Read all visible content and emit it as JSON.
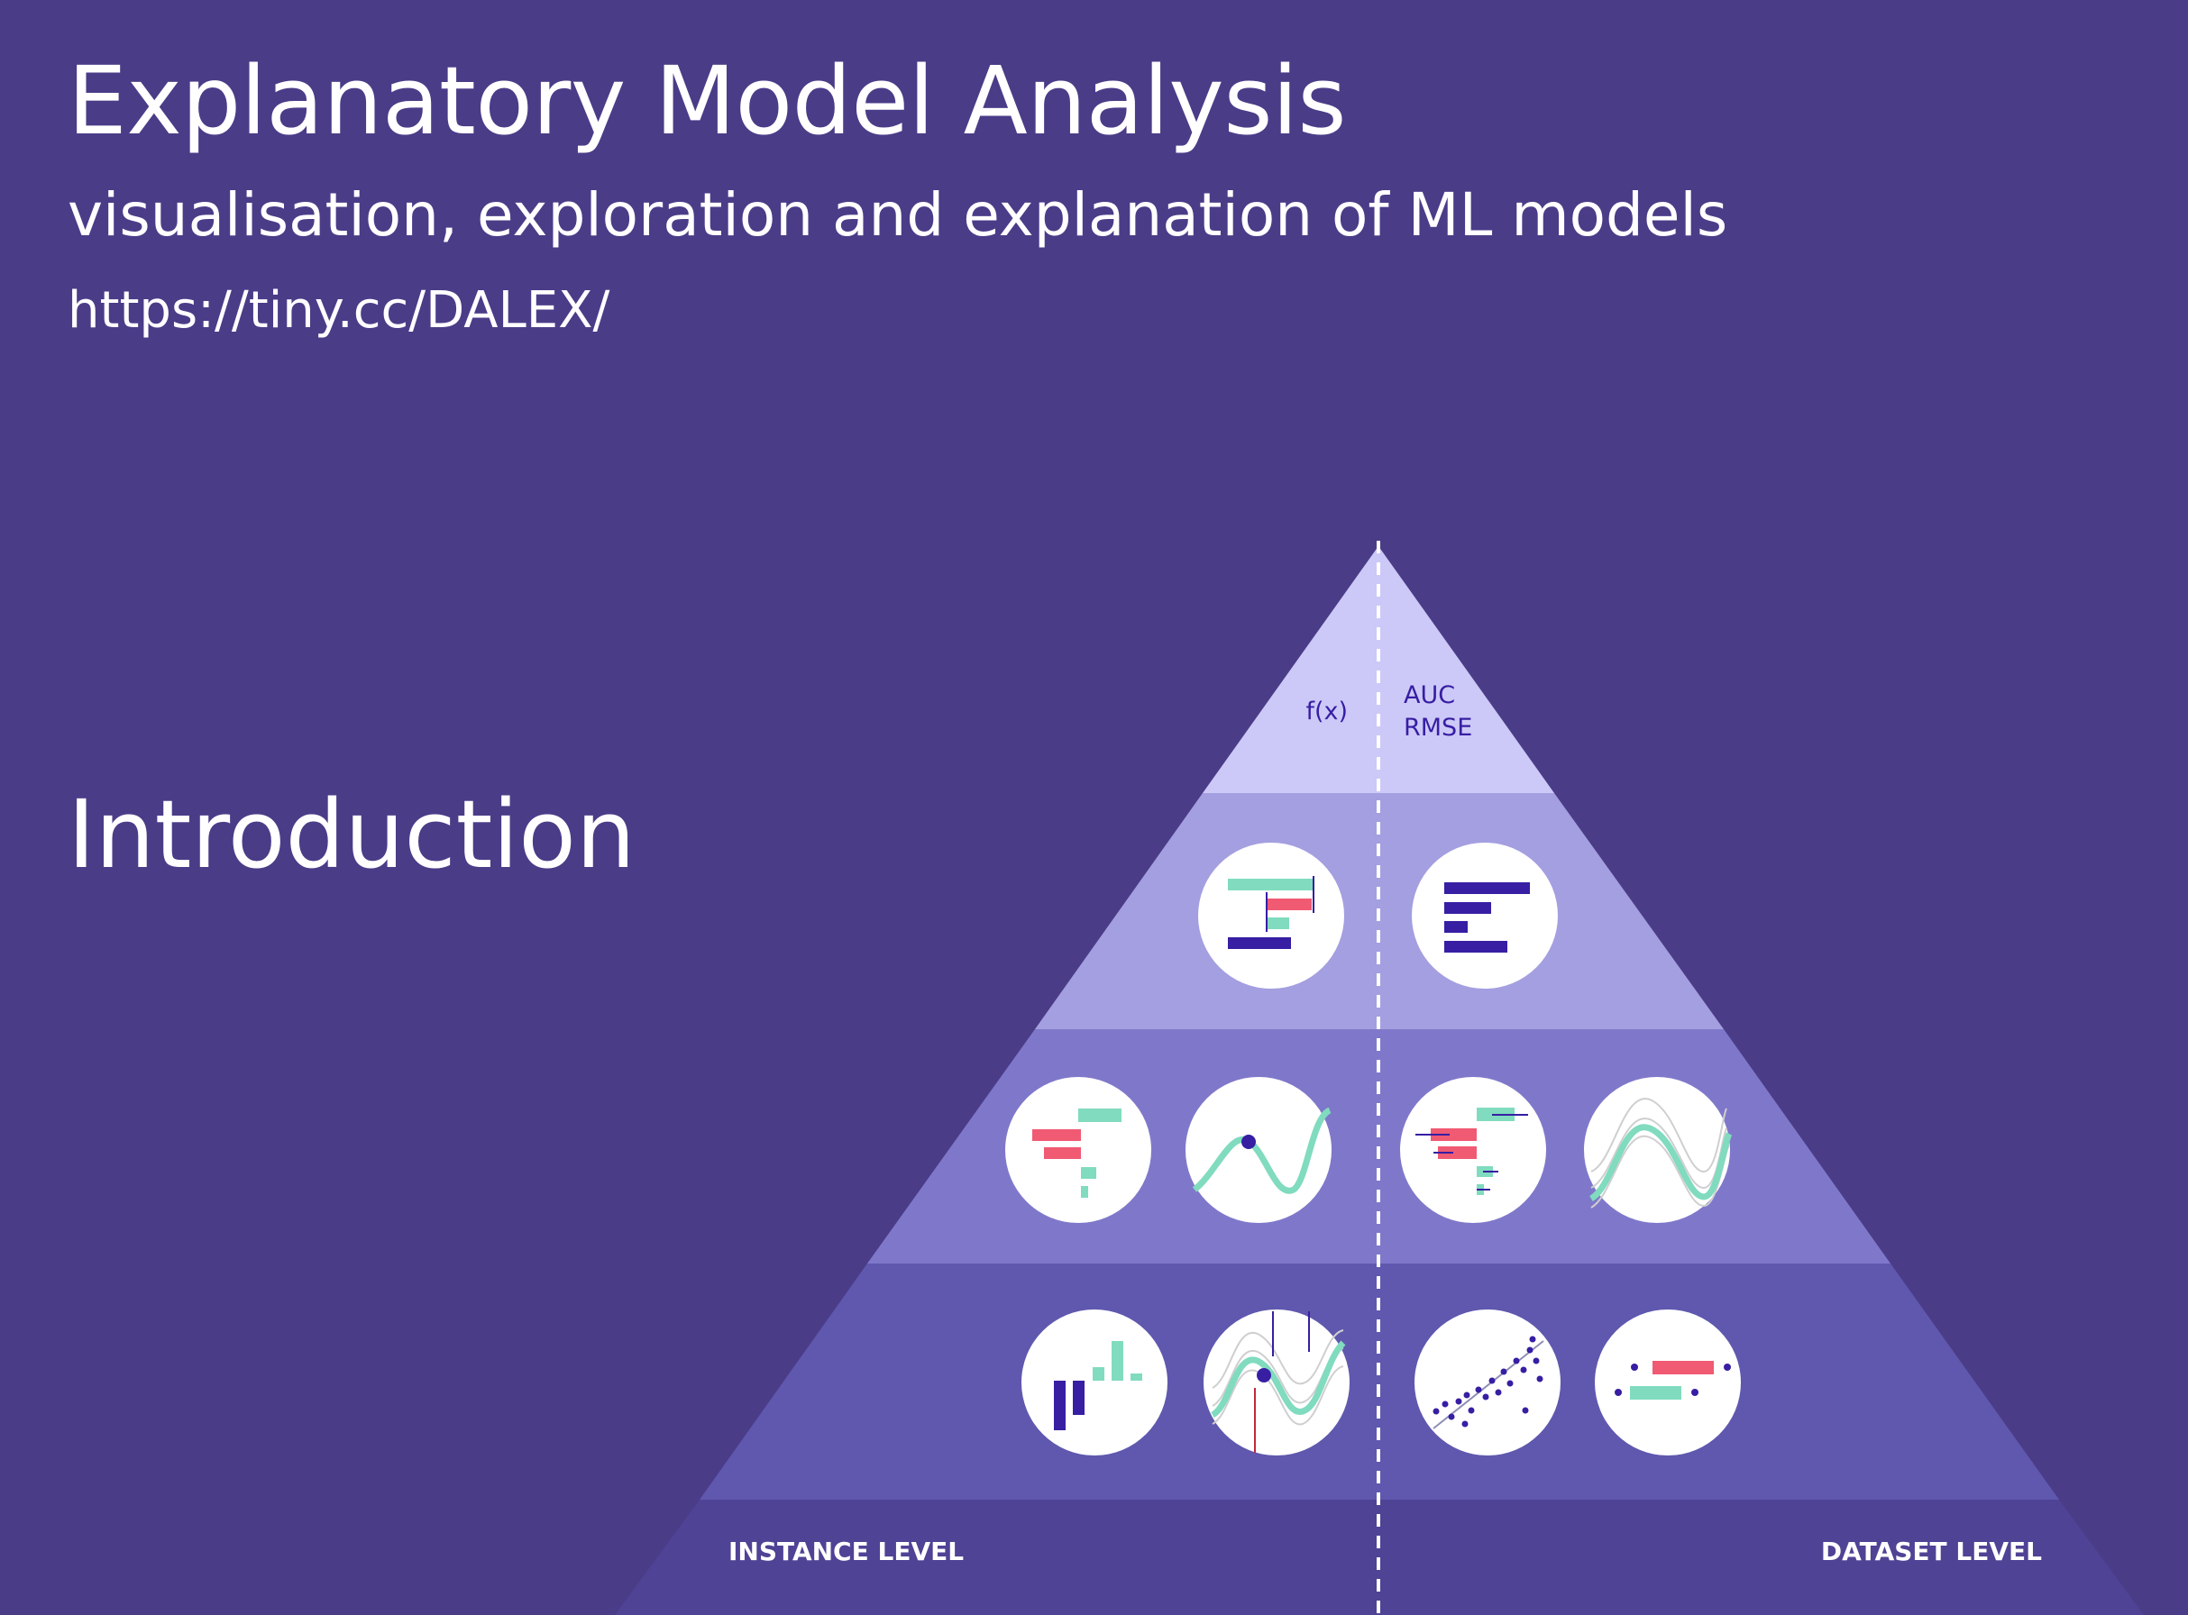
{
  "header": {
    "title": "Explanatory Model Analysis",
    "subtitle": "visualisation, exploration and explanation of ML models",
    "url": "https://tiny.cc/DALEX/"
  },
  "section_title": "Introduction",
  "pyramid": {
    "top_left_label": "f(x)",
    "top_right_label_line1": "AUC",
    "top_right_label_line2": "RMSE",
    "bottom_left_label": "INSTANCE LEVEL",
    "bottom_right_label": "DATASET LEVEL"
  },
  "colors": {
    "background": "#4b3c88",
    "tier1": "#ccc9f8",
    "tier2": "#a49fe0",
    "tier3": "#7f78ca",
    "tier4": "#5f58ae",
    "tier5": "#4e4395",
    "teal": "#80dbbf",
    "red": "#f05a73",
    "navy": "#371ea3"
  },
  "icons": [
    "break-down-icon",
    "variable-importance-icon",
    "shap-icon",
    "ceteris-paribus-icon",
    "shap-dataset-icon",
    "partial-dependence-icon",
    "lime-icon",
    "ice-profiles-icon",
    "residuals-scatter-icon",
    "model-performance-icon"
  ]
}
